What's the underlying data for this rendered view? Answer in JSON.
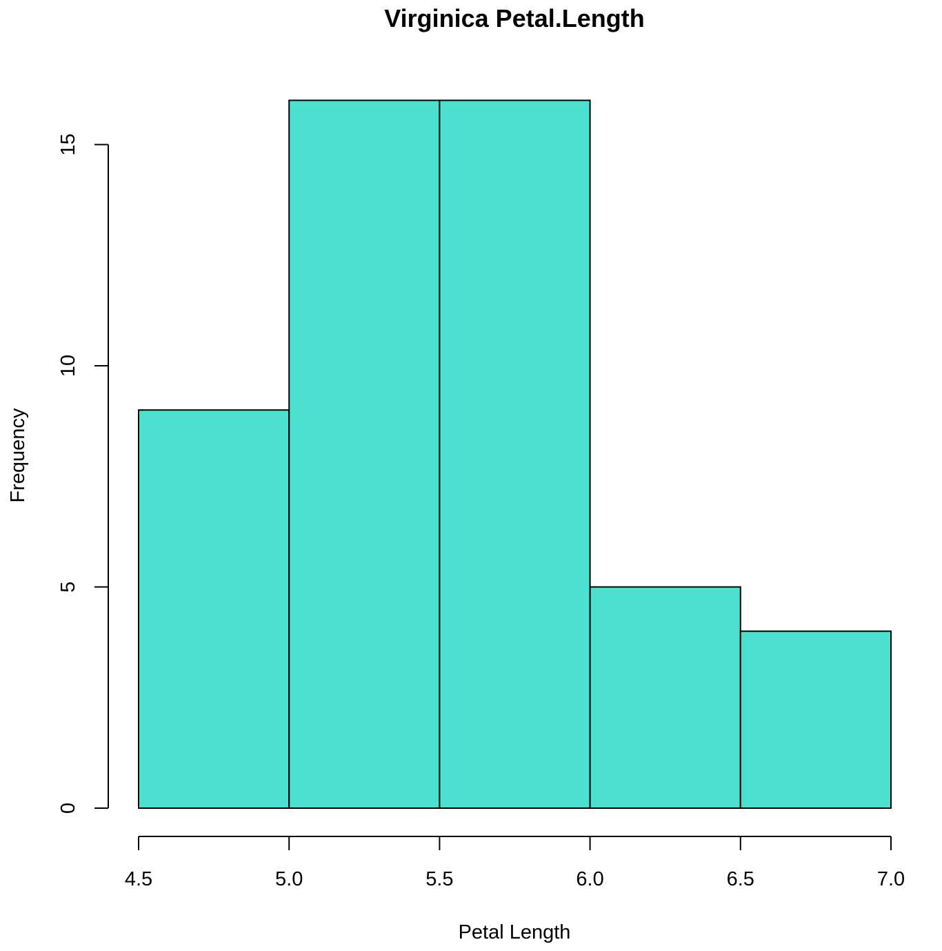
{
  "chart_data": {
    "type": "bar",
    "subtype": "histogram",
    "title": "Virginica Petal.Length",
    "xlabel": "Petal Length",
    "ylabel": "Frequency",
    "bins": [
      {
        "start": 4.5,
        "end": 5.0,
        "count": 9
      },
      {
        "start": 5.0,
        "end": 5.5,
        "count": 16
      },
      {
        "start": 5.5,
        "end": 6.0,
        "count": 16
      },
      {
        "start": 6.0,
        "end": 6.5,
        "count": 5
      },
      {
        "start": 6.5,
        "end": 7.0,
        "count": 4
      }
    ],
    "xlim": [
      4.5,
      7.0
    ],
    "ylim": [
      0,
      16
    ],
    "xticks": [
      "4.5",
      "5.0",
      "5.5",
      "6.0",
      "6.5",
      "7.0"
    ],
    "yticks": [
      "0",
      "5",
      "10",
      "15"
    ],
    "grid": false,
    "legend": "none",
    "colors": {
      "bar_fill": "#4ce0cf",
      "bar_edge": "#000000",
      "background": "#ffffff"
    }
  }
}
